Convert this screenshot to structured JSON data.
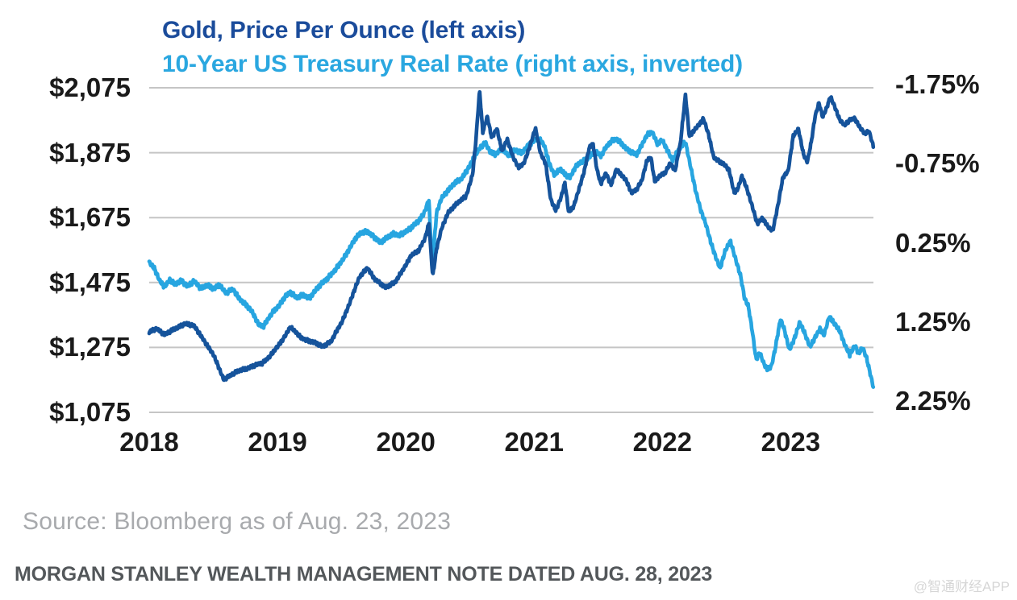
{
  "titles": {
    "line1": "Gold, Price Per Ounce (left axis)",
    "line2": "10-Year US Treasury Real Rate (right axis, inverted)"
  },
  "footer": {
    "source": "Source: Bloomberg as of Aug. 23, 2023",
    "note": "MORGAN STANLEY WEALTH MANAGEMENT NOTE DATED AUG. 28, 2023",
    "watermark": "@智通财经APP"
  },
  "colors": {
    "title1": "#1b4c9b",
    "title2": "#2aa7e0",
    "gold_line": "#15539b",
    "rate_line": "#27a5e0",
    "grid": "#c5c5c5",
    "axis_text": "#1a1a1a",
    "source_text": "#a8aaad",
    "note_text": "#53575a",
    "watermark_text": "#d6d6d6"
  },
  "chart_data": {
    "type": "line",
    "title": "Gold, Price Per Ounce (left axis)",
    "subtitle": "10-Year US Treasury Real Rate (right axis, inverted)",
    "grid": true,
    "legend_position": "none",
    "x_axis": {
      "ticks": [
        "2018",
        "2019",
        "2020",
        "2021",
        "2022",
        "2023"
      ],
      "range": [
        2018,
        2023.645
      ]
    },
    "left_axis": {
      "ticks": [
        "$2,075",
        "$1,875",
        "$1,675",
        "$1,475",
        "$1,275",
        "$1,075"
      ],
      "max": 2075,
      "min": 1075,
      "unit": "USD per ounce"
    },
    "right_axis": {
      "ticks": [
        "-1.75%",
        "-0.75%",
        "0.25%",
        "1.25%",
        "2.25%"
      ],
      "min": -1.75,
      "max": 2.25,
      "inverted": true,
      "unit": "percent"
    },
    "series": [
      {
        "name": "10-Year US Treasury Real Rate (right axis, inverted)",
        "axis": "right",
        "color": "#27a5e0",
        "noise_amp": 0.035,
        "points": [
          [
            2018.0,
            0.5
          ],
          [
            2018.04,
            0.58
          ],
          [
            2018.08,
            0.72
          ],
          [
            2018.12,
            0.8
          ],
          [
            2018.16,
            0.72
          ],
          [
            2018.2,
            0.78
          ],
          [
            2018.25,
            0.72
          ],
          [
            2018.3,
            0.8
          ],
          [
            2018.35,
            0.74
          ],
          [
            2018.4,
            0.82
          ],
          [
            2018.45,
            0.78
          ],
          [
            2018.5,
            0.84
          ],
          [
            2018.55,
            0.78
          ],
          [
            2018.6,
            0.88
          ],
          [
            2018.65,
            0.84
          ],
          [
            2018.7,
            0.95
          ],
          [
            2018.75,
            1.02
          ],
          [
            2018.8,
            1.12
          ],
          [
            2018.85,
            1.28
          ],
          [
            2018.89,
            1.3
          ],
          [
            2018.93,
            1.2
          ],
          [
            2018.97,
            1.12
          ],
          [
            2019.01,
            1.05
          ],
          [
            2019.06,
            0.92
          ],
          [
            2019.1,
            0.88
          ],
          [
            2019.15,
            0.95
          ],
          [
            2019.2,
            0.9
          ],
          [
            2019.25,
            0.95
          ],
          [
            2019.3,
            0.85
          ],
          [
            2019.35,
            0.75
          ],
          [
            2019.4,
            0.68
          ],
          [
            2019.45,
            0.6
          ],
          [
            2019.5,
            0.48
          ],
          [
            2019.55,
            0.35
          ],
          [
            2019.6,
            0.22
          ],
          [
            2019.65,
            0.12
          ],
          [
            2019.7,
            0.1
          ],
          [
            2019.75,
            0.18
          ],
          [
            2019.8,
            0.25
          ],
          [
            2019.85,
            0.18
          ],
          [
            2019.9,
            0.14
          ],
          [
            2019.95,
            0.16
          ],
          [
            2020.0,
            0.1
          ],
          [
            2020.05,
            0.05
          ],
          [
            2020.1,
            -0.02
          ],
          [
            2020.14,
            -0.12
          ],
          [
            2020.18,
            -0.3
          ],
          [
            2020.205,
            0.58
          ],
          [
            2020.24,
            -0.12
          ],
          [
            2020.28,
            -0.32
          ],
          [
            2020.33,
            -0.42
          ],
          [
            2020.38,
            -0.5
          ],
          [
            2020.43,
            -0.55
          ],
          [
            2020.48,
            -0.68
          ],
          [
            2020.53,
            -0.82
          ],
          [
            2020.58,
            -0.95
          ],
          [
            2020.62,
            -1.02
          ],
          [
            2020.66,
            -0.9
          ],
          [
            2020.7,
            -0.86
          ],
          [
            2020.75,
            -0.94
          ],
          [
            2020.8,
            -0.86
          ],
          [
            2020.85,
            -0.92
          ],
          [
            2020.9,
            -0.88
          ],
          [
            2020.95,
            -0.98
          ],
          [
            2021.0,
            -1.04
          ],
          [
            2021.04,
            -1.06
          ],
          [
            2021.08,
            -0.98
          ],
          [
            2021.12,
            -0.75
          ],
          [
            2021.16,
            -0.6
          ],
          [
            2021.2,
            -0.68
          ],
          [
            2021.24,
            -0.62
          ],
          [
            2021.28,
            -0.58
          ],
          [
            2021.32,
            -0.7
          ],
          [
            2021.36,
            -0.76
          ],
          [
            2021.4,
            -0.8
          ],
          [
            2021.44,
            -0.86
          ],
          [
            2021.48,
            -0.9
          ],
          [
            2021.52,
            -0.84
          ],
          [
            2021.56,
            -0.96
          ],
          [
            2021.6,
            -1.04
          ],
          [
            2021.64,
            -1.06
          ],
          [
            2021.68,
            -1.0
          ],
          [
            2021.72,
            -0.94
          ],
          [
            2021.76,
            -0.9
          ],
          [
            2021.8,
            -0.86
          ],
          [
            2021.84,
            -0.98
          ],
          [
            2021.88,
            -1.12
          ],
          [
            2021.92,
            -1.16
          ],
          [
            2021.96,
            -1.0
          ],
          [
            2022.0,
            -1.04
          ],
          [
            2022.04,
            -0.92
          ],
          [
            2022.08,
            -0.8
          ],
          [
            2022.12,
            -0.9
          ],
          [
            2022.15,
            -0.97
          ],
          [
            2022.18,
            -1.02
          ],
          [
            2022.22,
            -0.72
          ],
          [
            2022.26,
            -0.4
          ],
          [
            2022.3,
            -0.15
          ],
          [
            2022.34,
            0.02
          ],
          [
            2022.38,
            0.25
          ],
          [
            2022.42,
            0.45
          ],
          [
            2022.45,
            0.58
          ],
          [
            2022.49,
            0.35
          ],
          [
            2022.53,
            0.22
          ],
          [
            2022.57,
            0.45
          ],
          [
            2022.61,
            0.68
          ],
          [
            2022.64,
            0.95
          ],
          [
            2022.67,
            1.05
          ],
          [
            2022.7,
            1.35
          ],
          [
            2022.73,
            1.72
          ],
          [
            2022.76,
            1.65
          ],
          [
            2022.79,
            1.78
          ],
          [
            2022.82,
            1.85
          ],
          [
            2022.85,
            1.8
          ],
          [
            2022.88,
            1.58
          ],
          [
            2022.92,
            1.22
          ],
          [
            2022.95,
            1.35
          ],
          [
            2022.99,
            1.6
          ],
          [
            2023.03,
            1.45
          ],
          [
            2023.07,
            1.26
          ],
          [
            2023.11,
            1.4
          ],
          [
            2023.15,
            1.56
          ],
          [
            2023.19,
            1.44
          ],
          [
            2023.23,
            1.34
          ],
          [
            2023.26,
            1.42
          ],
          [
            2023.3,
            1.18
          ],
          [
            2023.34,
            1.26
          ],
          [
            2023.38,
            1.36
          ],
          [
            2023.42,
            1.54
          ],
          [
            2023.46,
            1.66
          ],
          [
            2023.5,
            1.54
          ],
          [
            2023.53,
            1.65
          ],
          [
            2023.56,
            1.58
          ],
          [
            2023.59,
            1.7
          ],
          [
            2023.62,
            1.9
          ],
          [
            2023.645,
            2.07
          ]
        ]
      },
      {
        "name": "Gold, Price Per Ounce (left axis)",
        "axis": "left",
        "color": "#15539b",
        "noise_amp": 7,
        "points": [
          [
            2018.0,
            1322
          ],
          [
            2018.06,
            1332
          ],
          [
            2018.12,
            1316
          ],
          [
            2018.2,
            1331
          ],
          [
            2018.28,
            1350
          ],
          [
            2018.35,
            1340
          ],
          [
            2018.42,
            1302
          ],
          [
            2018.5,
            1252
          ],
          [
            2018.58,
            1178
          ],
          [
            2018.65,
            1192
          ],
          [
            2018.72,
            1207
          ],
          [
            2018.8,
            1215
          ],
          [
            2018.88,
            1227
          ],
          [
            2018.95,
            1252
          ],
          [
            2019.02,
            1287
          ],
          [
            2019.1,
            1338
          ],
          [
            2019.18,
            1306
          ],
          [
            2019.27,
            1292
          ],
          [
            2019.35,
            1278
          ],
          [
            2019.42,
            1295
          ],
          [
            2019.5,
            1352
          ],
          [
            2019.56,
            1410
          ],
          [
            2019.64,
            1492
          ],
          [
            2019.7,
            1522
          ],
          [
            2019.76,
            1483
          ],
          [
            2019.84,
            1461
          ],
          [
            2019.92,
            1476
          ],
          [
            2019.98,
            1516
          ],
          [
            2020.04,
            1558
          ],
          [
            2020.1,
            1572
          ],
          [
            2020.15,
            1612
          ],
          [
            2020.18,
            1658
          ],
          [
            2020.21,
            1495
          ],
          [
            2020.24,
            1578
          ],
          [
            2020.28,
            1642
          ],
          [
            2020.33,
            1692
          ],
          [
            2020.4,
            1718
          ],
          [
            2020.47,
            1742
          ],
          [
            2020.52,
            1808
          ],
          [
            2020.545,
            1905
          ],
          [
            2020.575,
            2065
          ],
          [
            2020.6,
            1938
          ],
          [
            2020.635,
            1988
          ],
          [
            2020.67,
            1922
          ],
          [
            2020.71,
            1948
          ],
          [
            2020.75,
            1878
          ],
          [
            2020.79,
            1918
          ],
          [
            2020.84,
            1858
          ],
          [
            2020.88,
            1828
          ],
          [
            2020.92,
            1842
          ],
          [
            2020.96,
            1888
          ],
          [
            2021.01,
            1950
          ],
          [
            2021.05,
            1872
          ],
          [
            2021.09,
            1842
          ],
          [
            2021.13,
            1732
          ],
          [
            2021.17,
            1696
          ],
          [
            2021.21,
            1736
          ],
          [
            2021.24,
            1782
          ],
          [
            2021.27,
            1692
          ],
          [
            2021.31,
            1712
          ],
          [
            2021.35,
            1762
          ],
          [
            2021.39,
            1816
          ],
          [
            2021.43,
            1892
          ],
          [
            2021.46,
            1902
          ],
          [
            2021.49,
            1822
          ],
          [
            2021.52,
            1778
          ],
          [
            2021.56,
            1812
          ],
          [
            2021.6,
            1778
          ],
          [
            2021.64,
            1822
          ],
          [
            2021.68,
            1806
          ],
          [
            2021.72,
            1788
          ],
          [
            2021.76,
            1752
          ],
          [
            2021.8,
            1762
          ],
          [
            2021.84,
            1788
          ],
          [
            2021.88,
            1852
          ],
          [
            2021.91,
            1863
          ],
          [
            2021.94,
            1788
          ],
          [
            2021.98,
            1802
          ],
          [
            2022.02,
            1812
          ],
          [
            2022.06,
            1843
          ],
          [
            2022.1,
            1822
          ],
          [
            2022.14,
            1902
          ],
          [
            2022.18,
            2052
          ],
          [
            2022.21,
            1926
          ],
          [
            2022.24,
            1942
          ],
          [
            2022.28,
            1958
          ],
          [
            2022.32,
            1978
          ],
          [
            2022.36,
            1932
          ],
          [
            2022.4,
            1862
          ],
          [
            2022.44,
            1848
          ],
          [
            2022.48,
            1838
          ],
          [
            2022.52,
            1822
          ],
          [
            2022.56,
            1752
          ],
          [
            2022.59,
            1766
          ],
          [
            2022.62,
            1802
          ],
          [
            2022.66,
            1762
          ],
          [
            2022.7,
            1712
          ],
          [
            2022.74,
            1656
          ],
          [
            2022.78,
            1672
          ],
          [
            2022.82,
            1648
          ],
          [
            2022.86,
            1636
          ],
          [
            2022.9,
            1712
          ],
          [
            2022.94,
            1798
          ],
          [
            2022.98,
            1818
          ],
          [
            2023.02,
            1928
          ],
          [
            2023.06,
            1948
          ],
          [
            2023.1,
            1868
          ],
          [
            2023.13,
            1846
          ],
          [
            2023.16,
            1908
          ],
          [
            2023.19,
            1988
          ],
          [
            2023.22,
            2028
          ],
          [
            2023.25,
            1983
          ],
          [
            2023.28,
            2012
          ],
          [
            2023.31,
            2048
          ],
          [
            2023.34,
            2022
          ],
          [
            2023.38,
            1978
          ],
          [
            2023.42,
            1958
          ],
          [
            2023.46,
            1976
          ],
          [
            2023.5,
            1982
          ],
          [
            2023.54,
            1952
          ],
          [
            2023.58,
            1932
          ],
          [
            2023.61,
            1942
          ],
          [
            2023.645,
            1895
          ]
        ]
      }
    ]
  }
}
